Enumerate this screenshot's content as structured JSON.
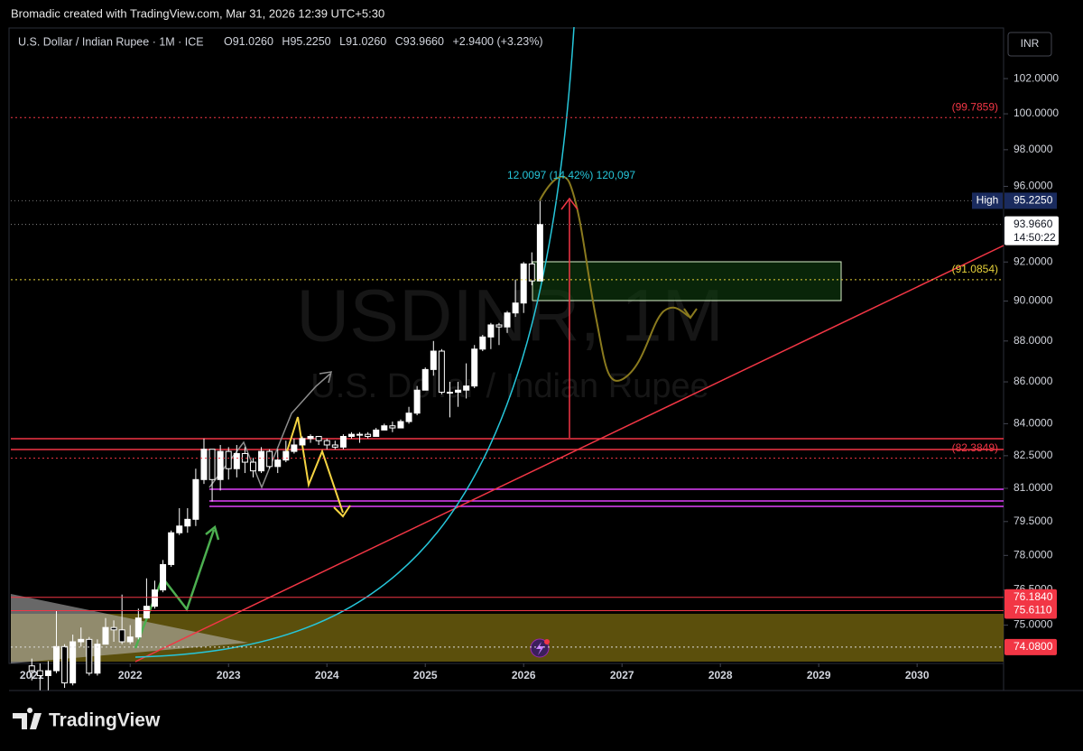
{
  "header": {
    "text": "Bromadic created with TradingView.com, Mar 31, 2026 12:39 UTC+5:30"
  },
  "legend": {
    "symbol": "U.S. Dollar / Indian Rupee · 1M · ICE",
    "o_key": "O",
    "o": "91.0260",
    "h_key": "H",
    "h": "95.2250",
    "l_key": "L",
    "l": "91.0260",
    "c_key": "C",
    "c": "93.9660",
    "change": "+2.9400 (+3.23%)"
  },
  "footer": {
    "brand": "TradingView"
  },
  "chart_data": {
    "type": "candlestick",
    "currency": "INR",
    "watermark": {
      "symbol": "USDINR, 1M",
      "name": "U.S. Dollar / Indian Rupee"
    },
    "log_scale": true,
    "grid": false,
    "color_up": "#ffffff",
    "color_down": "#000000",
    "x": [
      "2021-01",
      "2021-02",
      "2021-03",
      "2021-04",
      "2021-05",
      "2021-06",
      "2021-07",
      "2021-08",
      "2021-09",
      "2021-10",
      "2021-11",
      "2021-12",
      "2022-01",
      "2022-02",
      "2022-03",
      "2022-04",
      "2022-05",
      "2022-06",
      "2022-07",
      "2022-08",
      "2022-09",
      "2022-10",
      "2022-11",
      "2022-12",
      "2023-01",
      "2023-02",
      "2023-03",
      "2023-04",
      "2023-05",
      "2023-06",
      "2023-07",
      "2023-08",
      "2023-09",
      "2023-10",
      "2023-11",
      "2023-12",
      "2024-01",
      "2024-02",
      "2024-03",
      "2024-04",
      "2024-05",
      "2024-06",
      "2024-07",
      "2024-08",
      "2024-09",
      "2024-10",
      "2024-11",
      "2024-12",
      "2025-01",
      "2025-02",
      "2025-03",
      "2025-04",
      "2025-05",
      "2025-06",
      "2025-07",
      "2025-08",
      "2025-09",
      "2025-10",
      "2025-11",
      "2025-12",
      "2026-01",
      "2026-02",
      "2026-03"
    ],
    "open": [
      73.3,
      73.1,
      72.9,
      73.1,
      74.1,
      72.6,
      74.3,
      74.4,
      73.0,
      74.2,
      74.9,
      74.8,
      74.3,
      74.5,
      75.3,
      75.8,
      76.5,
      77.6,
      79.0,
      79.3,
      79.6,
      81.4,
      82.8,
      81.4,
      82.7,
      81.9,
      82.6,
      82.2,
      81.8,
      82.7,
      82.0,
      82.3,
      82.7,
      83.0,
      83.3,
      83.4,
      83.2,
      83.0,
      82.9,
      83.4,
      83.5,
      83.5,
      83.4,
      83.7,
      83.9,
      83.8,
      84.1,
      84.5,
      85.6,
      86.6,
      87.5,
      85.5,
      85.5,
      85.6,
      85.8,
      87.6,
      88.2,
      88.8,
      88.7,
      89.4,
      89.9,
      91.9,
      91.026
    ],
    "high": [
      73.6,
      73.4,
      73.5,
      75.6,
      74.2,
      74.6,
      74.9,
      74.5,
      74.4,
      75.3,
      75.2,
      76.3,
      75.0,
      75.7,
      77.0,
      76.9,
      77.8,
      79.1,
      80.1,
      80.1,
      81.9,
      83.3,
      82.8,
      83.0,
      82.9,
      83.0,
      82.9,
      82.4,
      82.9,
      82.8,
      82.8,
      83.2,
      83.3,
      83.4,
      83.5,
      83.4,
      83.3,
      83.2,
      83.5,
      83.6,
      83.6,
      83.6,
      83.8,
      84.0,
      84.1,
      84.2,
      84.8,
      85.8,
      86.7,
      88.0,
      87.6,
      86.0,
      86.0,
      86.9,
      87.8,
      88.3,
      88.9,
      88.9,
      89.5,
      91.1,
      92.0,
      92.5,
      95.225
    ],
    "low": [
      72.7,
      72.3,
      72.3,
      73.0,
      72.4,
      72.5,
      74.1,
      72.9,
      72.9,
      74.2,
      74.3,
      74.2,
      74.2,
      74.4,
      75.3,
      75.7,
      76.4,
      77.5,
      78.9,
      79.0,
      79.3,
      81.2,
      80.4,
      80.9,
      81.4,
      81.5,
      81.7,
      81.5,
      81.7,
      81.9,
      81.7,
      82.2,
      82.6,
      83.0,
      83.1,
      83.0,
      82.8,
      82.8,
      82.8,
      83.3,
      83.1,
      83.3,
      83.4,
      83.7,
      83.6,
      83.8,
      84.0,
      84.4,
      85.6,
      86.3,
      85.4,
      84.3,
      84.8,
      85.2,
      85.7,
      87.5,
      87.6,
      87.8,
      88.4,
      89.2,
      89.4,
      90.8,
      91.026
    ],
    "close": [
      73.1,
      72.9,
      73.1,
      74.1,
      72.6,
      74.3,
      74.4,
      73.0,
      74.2,
      74.9,
      74.8,
      74.3,
      74.5,
      75.3,
      75.8,
      76.5,
      77.6,
      79.0,
      79.3,
      79.6,
      81.4,
      82.8,
      81.4,
      82.7,
      81.9,
      82.6,
      82.2,
      81.8,
      82.7,
      82.0,
      82.3,
      82.7,
      83.0,
      83.3,
      83.4,
      83.2,
      83.0,
      82.9,
      83.4,
      83.5,
      83.5,
      83.4,
      83.7,
      83.9,
      83.8,
      84.1,
      84.5,
      85.6,
      86.6,
      87.5,
      85.5,
      85.5,
      85.6,
      85.8,
      87.6,
      88.2,
      88.8,
      88.7,
      89.4,
      89.9,
      91.9,
      91.026,
      93.966
    ],
    "xlim": [
      "2020-10",
      "2030-11"
    ],
    "xticks": [
      {
        "value": "2021-01",
        "label": "2021"
      },
      {
        "value": "2022-01",
        "label": "2022"
      },
      {
        "value": "2023-01",
        "label": "2023"
      },
      {
        "value": "2024-01",
        "label": "2024"
      },
      {
        "value": "2025-01",
        "label": "2025"
      },
      {
        "value": "2026-01",
        "label": "2026"
      },
      {
        "value": "2027-01",
        "label": "2027"
      },
      {
        "value": "2028-01",
        "label": "2028"
      },
      {
        "value": "2029-01",
        "label": "2029"
      },
      {
        "value": "2030-01",
        "label": "2030"
      }
    ],
    "ylim": [
      73.4,
      105
    ],
    "yticks": [
      {
        "value": 102,
        "label": "102.0000"
      },
      {
        "value": 100,
        "label": "100.0000"
      },
      {
        "value": 98,
        "label": "98.0000"
      },
      {
        "value": 96,
        "label": "96.0000"
      },
      {
        "value": 92,
        "label": "92.0000"
      },
      {
        "value": 90,
        "label": "90.0000"
      },
      {
        "value": 88,
        "label": "88.0000"
      },
      {
        "value": 86,
        "label": "86.0000"
      },
      {
        "value": 84,
        "label": "84.0000"
      },
      {
        "value": 82.5,
        "label": "82.5000"
      },
      {
        "value": 81,
        "label": "81.0000"
      },
      {
        "value": 79.5,
        "label": "79.5000"
      },
      {
        "value": 78,
        "label": "78.0000"
      },
      {
        "value": 76.5,
        "label": "76.5000"
      },
      {
        "value": 75,
        "label": "75.0000"
      }
    ],
    "levels": [
      {
        "value": 99.7859,
        "label": "(99.7859)",
        "color": "#f23645",
        "boxed": false,
        "dash": true
      },
      {
        "value": 91.0854,
        "label": "(91.0854)",
        "color": "#e8d33a",
        "boxed": false,
        "dash": true
      },
      {
        "value": 82.3849,
        "label": "(82.3849)",
        "color": "#f23645",
        "boxed": false,
        "dash": true
      },
      {
        "value": 76.184,
        "label": "76.1840",
        "color": "#f23645",
        "boxed": true,
        "dash": false
      },
      {
        "value": 75.611,
        "label": "75.6110",
        "color": "#f23645",
        "boxed": true,
        "dash": false
      },
      {
        "value": 74.08,
        "label": "74.0800",
        "color": "#f23645",
        "boxed": true,
        "dash": true
      }
    ],
    "high_marker": {
      "tag": "High",
      "value": 95.225,
      "label": "95.2250"
    },
    "last_price": {
      "value": 93.966,
      "label": "93.9660",
      "countdown": "14:50:22"
    },
    "annotation": "12.0097 (14.42%) 120,097"
  }
}
